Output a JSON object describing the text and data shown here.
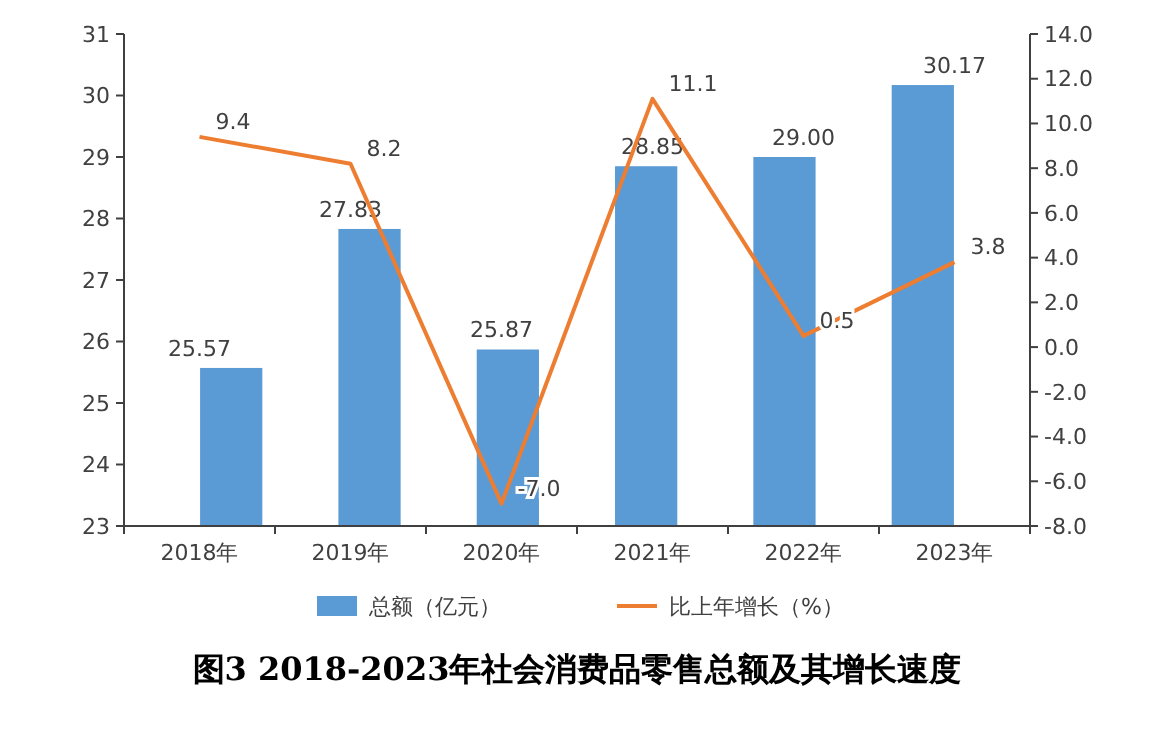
{
  "chart_data": {
    "type": "bar",
    "title": "图3 2018-2023年社会消费品零售总额及其增长速度",
    "categories": [
      "2018年",
      "2019年",
      "2020年",
      "2021年",
      "2022年",
      "2023年"
    ],
    "series": [
      {
        "name": "总额（亿元）",
        "color": "#5b9bd5",
        "values": [
          25.57,
          27.83,
          25.87,
          28.85,
          29.0,
          30.17
        ],
        "value_labels": [
          "25.57",
          "27.83",
          "25.87",
          "28.85",
          "29.00",
          "30.17"
        ]
      },
      {
        "name": "比上年增长（%）",
        "type": "line",
        "axis": "y2",
        "color": "#ed7d31",
        "values": [
          9.4,
          8.2,
          -7.0,
          11.1,
          0.5,
          3.8
        ],
        "value_labels": [
          "9.4",
          "8.2",
          "-7.0",
          "11.1",
          "0.5",
          "3.8"
        ]
      }
    ],
    "ylim": [
      23,
      31
    ],
    "yticks": [
      23,
      24,
      25,
      26,
      27,
      28,
      29,
      30,
      31
    ],
    "y2lim": [
      -8,
      14
    ],
    "y2ticks": [
      {
        "value": -8,
        "label": "-8.0"
      },
      {
        "value": -6,
        "label": "-6.0"
      },
      {
        "value": -4,
        "label": "-4.0"
      },
      {
        "value": -2,
        "label": "-2.0"
      },
      {
        "value": 0,
        "label": "0.0"
      },
      {
        "value": 2,
        "label": "2.0"
      },
      {
        "value": 4,
        "label": "4.0"
      },
      {
        "value": 6,
        "label": "6.0"
      },
      {
        "value": 8,
        "label": "8.0"
      },
      {
        "value": 10,
        "label": "10.0"
      },
      {
        "value": 12,
        "label": "12.0"
      },
      {
        "value": 14,
        "label": "14.0"
      }
    ],
    "legend": "bottom",
    "grid": false,
    "marker": "none"
  }
}
